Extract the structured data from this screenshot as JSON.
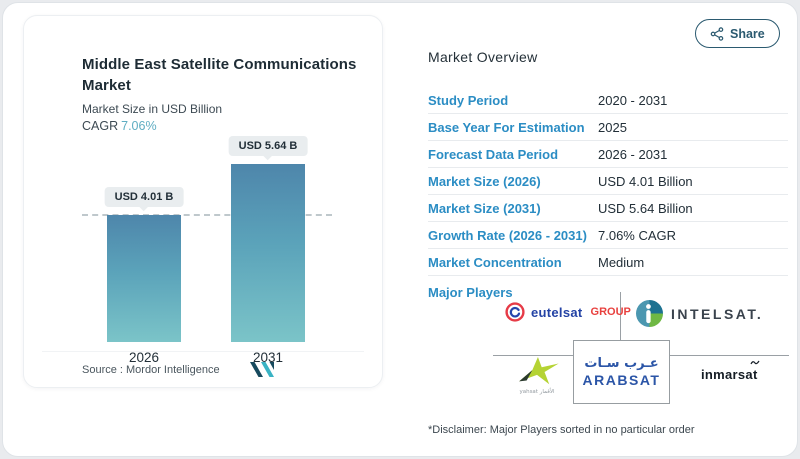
{
  "share_button": {
    "label": "Share"
  },
  "chart_card": {
    "title": "Middle East Satellite Communications Market",
    "subtitle": "Market Size in USD Billion",
    "cagr_label": "CAGR",
    "cagr_value": "7.06%",
    "source": "Source :  Mordor Intelligence"
  },
  "chart_data": {
    "type": "bar",
    "title": "Middle East Satellite Communications Market",
    "ylabel": "Market Size in USD Billion",
    "cagr_percent": "7.06%",
    "categories": [
      "2026",
      "2031"
    ],
    "values": [
      4.01,
      5.64
    ],
    "bar_labels": [
      "USD 4.01 B",
      "USD 5.64 B"
    ],
    "ylim": [
      0,
      5.64
    ],
    "reference_line_at": 4.01,
    "bar_gradient": [
      "#4e86ab",
      "#7bc4c8"
    ],
    "legend": "none",
    "grid": "off"
  },
  "overview": {
    "title": "Market Overview",
    "rows": [
      {
        "label": "Study Period",
        "value": "2020 - 2031"
      },
      {
        "label": "Base Year For Estimation",
        "value": "2025"
      },
      {
        "label": "Forecast Data Period",
        "value": "2026 - 2031"
      },
      {
        "label": "Market Size (2026)",
        "value": "USD 4.01 Billion"
      },
      {
        "label": "Market Size (2031)",
        "value": "USD 5.64 Billion"
      },
      {
        "label": "Growth Rate (2026 - 2031)",
        "value": "7.06% CAGR"
      },
      {
        "label": "Market Concentration",
        "value": "Medium"
      }
    ],
    "major_players_label": "Major Players",
    "disclaimer": "*Disclaimer: Major Players sorted in no particular order"
  },
  "players": {
    "eutelsat": {
      "name": "eutelsat",
      "suffix": "GROUP"
    },
    "intelsat": {
      "name": "INTELSAT."
    },
    "yahsat": {
      "name": "yahsat الأقمار"
    },
    "arabsat": {
      "arabic": "عـرب سـات",
      "name": "ARABSAT"
    },
    "inmarsat": {
      "name": "inmarsat"
    }
  },
  "colors": {
    "accent_blue": "#2b8dc4",
    "cagr_teal": "#5fadc2",
    "share_teal": "#2b5a70",
    "bar_top": "#4e86ab",
    "bar_bottom": "#7bc4c8"
  }
}
